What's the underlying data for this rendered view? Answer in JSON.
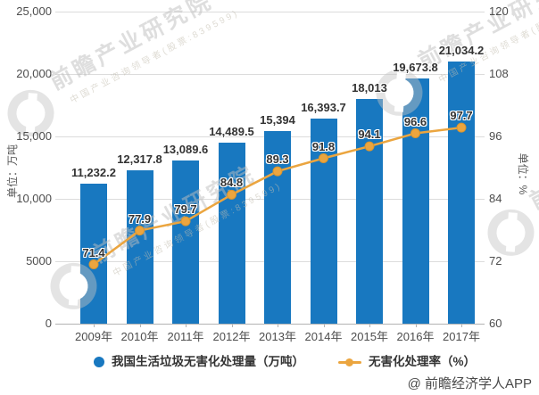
{
  "chart_data": {
    "type": "bar",
    "subtype": "bar-line-combo",
    "categories": [
      "2009年",
      "2010年",
      "2011年",
      "2012年",
      "2013年",
      "2014年",
      "2015年",
      "2016年",
      "2017年"
    ],
    "series": [
      {
        "name": "我国生活垃圾无害化处理量（万吨）",
        "type": "bar",
        "axis": "left",
        "color": "#1878c0",
        "values": [
          11232.2,
          12317.8,
          13089.6,
          14489.5,
          15394,
          16393.7,
          18013,
          19673.8,
          21034.2
        ],
        "labels": [
          "11,232.2",
          "12,317.8",
          "13,089.6",
          "14,489.5",
          "15,394",
          "16,393.7",
          "18,013",
          "19,673.8",
          "21,034.2"
        ]
      },
      {
        "name": "无害化处理率（%）",
        "type": "line",
        "axis": "right",
        "color": "#eba53f",
        "marker_stroke": "#d9952e",
        "values": [
          71.4,
          77.9,
          79.7,
          84.8,
          89.3,
          91.8,
          94.1,
          96.6,
          97.7
        ],
        "labels": [
          "71.4",
          "77.9",
          "79.7",
          "84.8",
          "89.3",
          "91.8",
          "94.1",
          "96.6",
          "97.7"
        ]
      }
    ],
    "left_axis": {
      "title": "单位：万吨",
      "min": 0,
      "max": 25000,
      "ticks": [
        "25,000",
        "20,000",
        "15,000",
        "10,000",
        "5000",
        "0"
      ]
    },
    "right_axis": {
      "title": "单位：%",
      "min": 60,
      "max": 120,
      "ticks": [
        "120",
        "108",
        "96",
        "84",
        "72",
        "60"
      ]
    },
    "grid": true,
    "legend_position": "bottom",
    "title": ""
  },
  "legend": {
    "bar_label": "我国生活垃圾无害化处理量（万吨）",
    "line_label": "无害化处理率（%）"
  },
  "watermark": {
    "logo": "qianzhan-logo",
    "line1": "前瞻产业研究院",
    "line2": "中国产业咨询领导者(股票:839599)"
  },
  "attribution": "@ 前瞻经济学人APP",
  "colors": {
    "bar": "#1878c0",
    "line": "#eba53f",
    "grid": "#dcdcdc",
    "axis_line": "#b3b3b3",
    "tick_text": "#4d4d4d",
    "data_label": "#333333",
    "background": "#ffffff"
  }
}
